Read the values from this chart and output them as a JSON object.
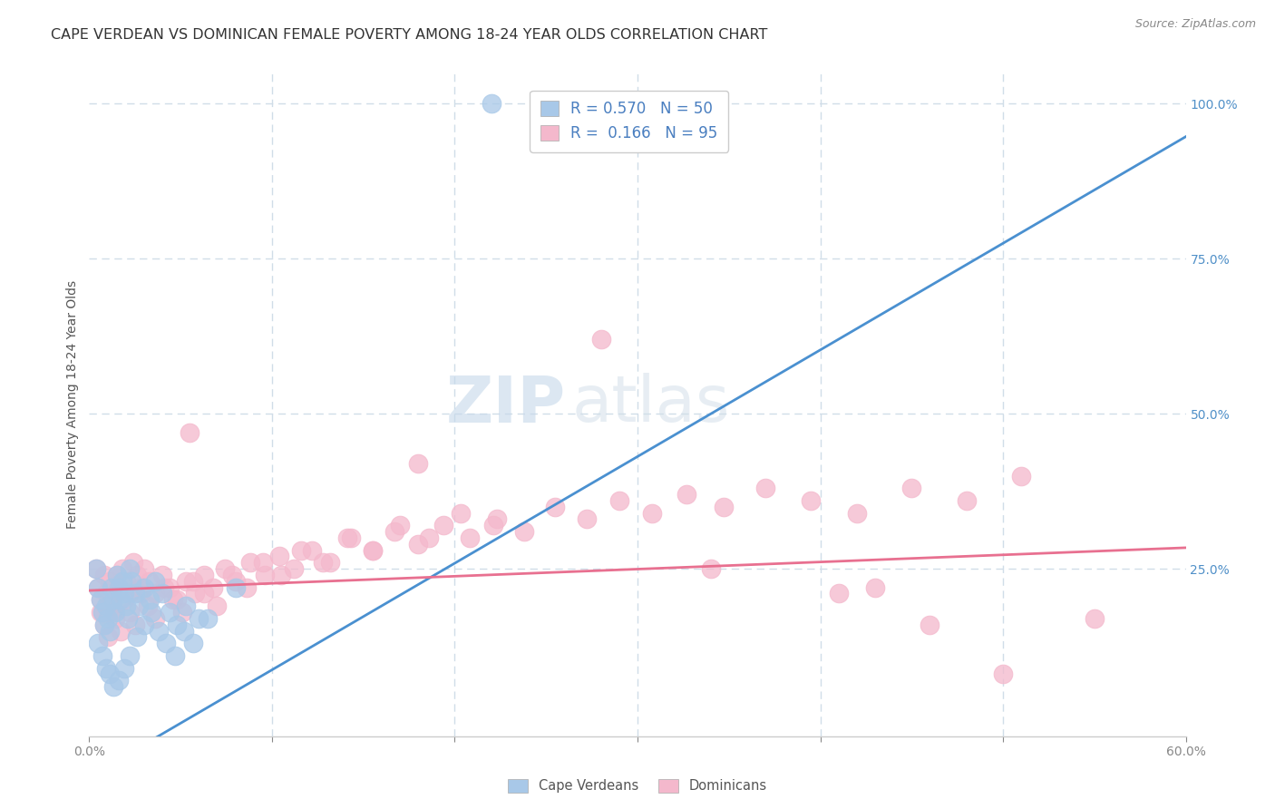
{
  "title": "CAPE VERDEAN VS DOMINICAN FEMALE POVERTY AMONG 18-24 YEAR OLDS CORRELATION CHART",
  "source": "Source: ZipAtlas.com",
  "ylabel": "Female Poverty Among 18-24 Year Olds",
  "xlim": [
    0.0,
    0.6
  ],
  "ylim": [
    -0.02,
    1.05
  ],
  "cv_R": 0.57,
  "cv_N": 50,
  "dom_R": 0.166,
  "dom_N": 95,
  "cv_color": "#a8c8e8",
  "dom_color": "#f4b8cc",
  "cv_line_color": "#4a90d0",
  "dom_line_color": "#e87090",
  "grid_color": "#d0dde8",
  "background_color": "#ffffff",
  "cv_line_slope": 1.72,
  "cv_line_intercept": -0.085,
  "dom_line_slope": 0.115,
  "dom_line_intercept": 0.215,
  "title_fontsize": 11.5,
  "axis_label_fontsize": 10,
  "tick_fontsize": 10,
  "legend_fontsize": 12,
  "watermark_fontsize": 52,
  "cv_scatter_x": [
    0.004,
    0.005,
    0.006,
    0.007,
    0.008,
    0.009,
    0.01,
    0.011,
    0.012,
    0.013,
    0.014,
    0.015,
    0.016,
    0.017,
    0.018,
    0.019,
    0.02,
    0.021,
    0.022,
    0.023,
    0.025,
    0.027,
    0.03,
    0.033,
    0.036,
    0.04,
    0.044,
    0.048,
    0.053,
    0.06,
    0.005,
    0.007,
    0.009,
    0.011,
    0.013,
    0.016,
    0.019,
    0.022,
    0.026,
    0.03,
    0.034,
    0.038,
    0.042,
    0.047,
    0.052,
    0.057,
    0.065,
    0.08,
    0.22,
    0.3
  ],
  "cv_scatter_y": [
    0.25,
    0.22,
    0.2,
    0.18,
    0.16,
    0.19,
    0.17,
    0.15,
    0.22,
    0.2,
    0.18,
    0.24,
    0.22,
    0.2,
    0.23,
    0.21,
    0.19,
    0.17,
    0.25,
    0.23,
    0.21,
    0.19,
    0.22,
    0.2,
    0.23,
    0.21,
    0.18,
    0.16,
    0.19,
    0.17,
    0.13,
    0.11,
    0.09,
    0.08,
    0.06,
    0.07,
    0.09,
    0.11,
    0.14,
    0.16,
    0.18,
    0.15,
    0.13,
    0.11,
    0.15,
    0.13,
    0.17,
    0.22,
    1.0,
    1.0
  ],
  "dom_scatter_x": [
    0.004,
    0.005,
    0.006,
    0.007,
    0.008,
    0.009,
    0.01,
    0.011,
    0.012,
    0.013,
    0.015,
    0.016,
    0.018,
    0.02,
    0.022,
    0.024,
    0.026,
    0.028,
    0.03,
    0.033,
    0.036,
    0.04,
    0.044,
    0.048,
    0.053,
    0.058,
    0.063,
    0.068,
    0.074,
    0.08,
    0.088,
    0.096,
    0.104,
    0.112,
    0.122,
    0.132,
    0.143,
    0.155,
    0.167,
    0.18,
    0.194,
    0.208,
    0.223,
    0.238,
    0.255,
    0.272,
    0.29,
    0.308,
    0.327,
    0.347,
    0.006,
    0.008,
    0.01,
    0.012,
    0.014,
    0.017,
    0.019,
    0.022,
    0.025,
    0.028,
    0.032,
    0.036,
    0.041,
    0.046,
    0.051,
    0.057,
    0.063,
    0.07,
    0.078,
    0.086,
    0.095,
    0.105,
    0.116,
    0.128,
    0.141,
    0.155,
    0.17,
    0.186,
    0.203,
    0.221,
    0.37,
    0.395,
    0.42,
    0.45,
    0.48,
    0.51,
    0.55,
    0.28,
    0.43,
    0.5,
    0.055,
    0.18,
    0.34,
    0.41,
    0.46
  ],
  "dom_scatter_y": [
    0.25,
    0.22,
    0.2,
    0.18,
    0.24,
    0.21,
    0.19,
    0.23,
    0.2,
    0.18,
    0.24,
    0.22,
    0.25,
    0.23,
    0.21,
    0.26,
    0.24,
    0.22,
    0.25,
    0.23,
    0.21,
    0.24,
    0.22,
    0.2,
    0.23,
    0.21,
    0.24,
    0.22,
    0.25,
    0.23,
    0.26,
    0.24,
    0.27,
    0.25,
    0.28,
    0.26,
    0.3,
    0.28,
    0.31,
    0.29,
    0.32,
    0.3,
    0.33,
    0.31,
    0.35,
    0.33,
    0.36,
    0.34,
    0.37,
    0.35,
    0.18,
    0.16,
    0.14,
    0.19,
    0.17,
    0.15,
    0.2,
    0.18,
    0.16,
    0.21,
    0.19,
    0.17,
    0.22,
    0.2,
    0.18,
    0.23,
    0.21,
    0.19,
    0.24,
    0.22,
    0.26,
    0.24,
    0.28,
    0.26,
    0.3,
    0.28,
    0.32,
    0.3,
    0.34,
    0.32,
    0.38,
    0.36,
    0.34,
    0.38,
    0.36,
    0.4,
    0.17,
    0.62,
    0.22,
    0.08,
    0.47,
    0.42,
    0.25,
    0.21,
    0.16
  ]
}
